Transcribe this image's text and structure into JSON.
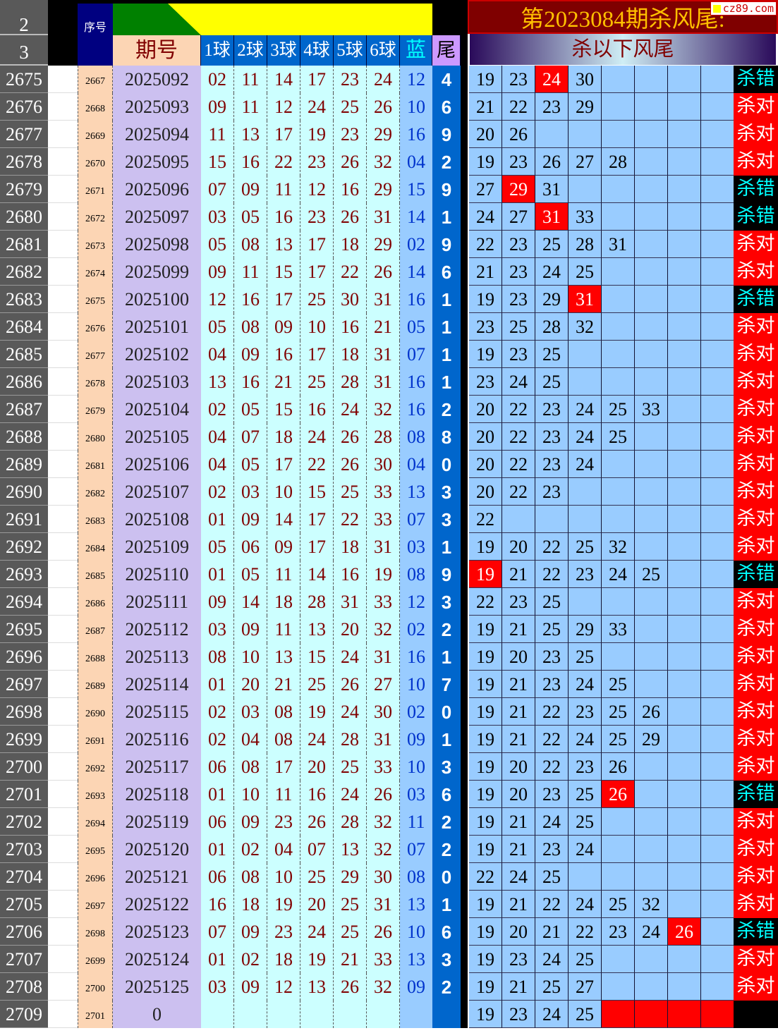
{
  "header": {
    "row_numbers": [
      "2",
      "3"
    ],
    "seq_label": "序号",
    "period_label": "期号",
    "ball_labels": [
      "1球",
      "2球",
      "3球",
      "4球",
      "5球",
      "6球"
    ],
    "blue_label": "蓝",
    "tail_label": "尾",
    "title": "第2023084期杀风尾:",
    "subtitle": "杀以下风尾",
    "watermark": "cz89.com"
  },
  "colors": {
    "hit": "#ff0000",
    "correct_bg": "#ff0000",
    "wrong_bg": "#000000",
    "wrong_text": "#00ffff",
    "tail_bg": "#0066cc"
  },
  "rows": [
    {
      "n": "2675",
      "seq": "2667",
      "period": "2025092",
      "balls": [
        "02",
        "11",
        "14",
        "17",
        "23",
        "24"
      ],
      "blue": "12",
      "tail": "4",
      "kill": [
        "19",
        "23",
        "24",
        "30"
      ],
      "hit": [
        2
      ],
      "result": "杀错"
    },
    {
      "n": "2676",
      "seq": "2668",
      "period": "2025093",
      "balls": [
        "09",
        "11",
        "12",
        "24",
        "25",
        "26"
      ],
      "blue": "10",
      "tail": "6",
      "kill": [
        "21",
        "22",
        "23",
        "29"
      ],
      "hit": [],
      "result": "杀对"
    },
    {
      "n": "2677",
      "seq": "2669",
      "period": "2025094",
      "balls": [
        "11",
        "13",
        "17",
        "19",
        "23",
        "29"
      ],
      "blue": "16",
      "tail": "9",
      "kill": [
        "20",
        "26"
      ],
      "hit": [],
      "result": "杀对"
    },
    {
      "n": "2678",
      "seq": "2670",
      "period": "2025095",
      "balls": [
        "15",
        "16",
        "22",
        "23",
        "26",
        "32"
      ],
      "blue": "04",
      "tail": "2",
      "kill": [
        "19",
        "23",
        "26",
        "27",
        "28"
      ],
      "hit": [],
      "result": "杀对"
    },
    {
      "n": "2679",
      "seq": "2671",
      "period": "2025096",
      "balls": [
        "07",
        "09",
        "11",
        "12",
        "16",
        "29"
      ],
      "blue": "15",
      "tail": "9",
      "kill": [
        "27",
        "29",
        "31"
      ],
      "hit": [
        1
      ],
      "result": "杀错"
    },
    {
      "n": "2680",
      "seq": "2672",
      "period": "2025097",
      "balls": [
        "03",
        "05",
        "16",
        "23",
        "26",
        "31"
      ],
      "blue": "14",
      "tail": "1",
      "kill": [
        "24",
        "27",
        "31",
        "33"
      ],
      "hit": [
        2
      ],
      "result": "杀错"
    },
    {
      "n": "2681",
      "seq": "2673",
      "period": "2025098",
      "balls": [
        "05",
        "08",
        "13",
        "17",
        "18",
        "29"
      ],
      "blue": "02",
      "tail": "9",
      "kill": [
        "22",
        "23",
        "25",
        "28",
        "31"
      ],
      "hit": [],
      "result": "杀对"
    },
    {
      "n": "2682",
      "seq": "2674",
      "period": "2025099",
      "balls": [
        "09",
        "11",
        "15",
        "17",
        "22",
        "26"
      ],
      "blue": "14",
      "tail": "6",
      "kill": [
        "21",
        "23",
        "24",
        "25"
      ],
      "hit": [],
      "result": "杀对"
    },
    {
      "n": "2683",
      "seq": "2675",
      "period": "2025100",
      "balls": [
        "12",
        "16",
        "17",
        "25",
        "30",
        "31"
      ],
      "blue": "16",
      "tail": "1",
      "kill": [
        "19",
        "23",
        "29",
        "31"
      ],
      "hit": [
        3
      ],
      "result": "杀错"
    },
    {
      "n": "2684",
      "seq": "2676",
      "period": "2025101",
      "balls": [
        "05",
        "08",
        "09",
        "10",
        "16",
        "21"
      ],
      "blue": "05",
      "tail": "1",
      "kill": [
        "23",
        "25",
        "28",
        "32"
      ],
      "hit": [],
      "result": "杀对"
    },
    {
      "n": "2685",
      "seq": "2677",
      "period": "2025102",
      "balls": [
        "04",
        "09",
        "16",
        "17",
        "18",
        "31"
      ],
      "blue": "07",
      "tail": "1",
      "kill": [
        "19",
        "23",
        "25"
      ],
      "hit": [],
      "result": "杀对"
    },
    {
      "n": "2686",
      "seq": "2678",
      "period": "2025103",
      "balls": [
        "13",
        "16",
        "21",
        "25",
        "28",
        "31"
      ],
      "blue": "16",
      "tail": "1",
      "kill": [
        "23",
        "24",
        "25"
      ],
      "hit": [],
      "result": "杀对"
    },
    {
      "n": "2687",
      "seq": "2679",
      "period": "2025104",
      "balls": [
        "02",
        "05",
        "15",
        "16",
        "24",
        "32"
      ],
      "blue": "16",
      "tail": "2",
      "kill": [
        "20",
        "22",
        "23",
        "24",
        "25",
        "33"
      ],
      "hit": [],
      "result": "杀对"
    },
    {
      "n": "2688",
      "seq": "2680",
      "period": "2025105",
      "balls": [
        "04",
        "07",
        "18",
        "24",
        "26",
        "28"
      ],
      "blue": "08",
      "tail": "8",
      "kill": [
        "20",
        "22",
        "23",
        "24",
        "25"
      ],
      "hit": [],
      "result": "杀对"
    },
    {
      "n": "2689",
      "seq": "2681",
      "period": "2025106",
      "balls": [
        "04",
        "05",
        "17",
        "22",
        "26",
        "30"
      ],
      "blue": "04",
      "tail": "0",
      "kill": [
        "20",
        "22",
        "23",
        "24"
      ],
      "hit": [],
      "result": "杀对"
    },
    {
      "n": "2690",
      "seq": "2682",
      "period": "2025107",
      "balls": [
        "02",
        "03",
        "10",
        "15",
        "25",
        "33"
      ],
      "blue": "13",
      "tail": "3",
      "kill": [
        "20",
        "22",
        "23"
      ],
      "hit": [],
      "result": "杀对"
    },
    {
      "n": "2691",
      "seq": "2683",
      "period": "2025108",
      "balls": [
        "01",
        "09",
        "14",
        "17",
        "22",
        "33"
      ],
      "blue": "07",
      "tail": "3",
      "kill": [
        "22"
      ],
      "hit": [],
      "result": "杀对"
    },
    {
      "n": "2692",
      "seq": "2684",
      "period": "2025109",
      "balls": [
        "05",
        "06",
        "09",
        "17",
        "18",
        "31"
      ],
      "blue": "03",
      "tail": "1",
      "kill": [
        "19",
        "20",
        "22",
        "25",
        "32"
      ],
      "hit": [],
      "result": "杀对"
    },
    {
      "n": "2693",
      "seq": "2685",
      "period": "2025110",
      "balls": [
        "01",
        "05",
        "11",
        "14",
        "16",
        "19"
      ],
      "blue": "08",
      "tail": "9",
      "kill": [
        "19",
        "21",
        "22",
        "23",
        "24",
        "25"
      ],
      "hit": [
        0
      ],
      "result": "杀错"
    },
    {
      "n": "2694",
      "seq": "2686",
      "period": "2025111",
      "balls": [
        "09",
        "14",
        "18",
        "28",
        "31",
        "33"
      ],
      "blue": "12",
      "tail": "3",
      "kill": [
        "22",
        "23",
        "25"
      ],
      "hit": [],
      "result": "杀对"
    },
    {
      "n": "2695",
      "seq": "2687",
      "period": "2025112",
      "balls": [
        "03",
        "09",
        "11",
        "13",
        "20",
        "32"
      ],
      "blue": "02",
      "tail": "2",
      "kill": [
        "19",
        "21",
        "25",
        "29",
        "33"
      ],
      "hit": [],
      "result": "杀对"
    },
    {
      "n": "2696",
      "seq": "2688",
      "period": "2025113",
      "balls": [
        "08",
        "10",
        "13",
        "15",
        "24",
        "31"
      ],
      "blue": "16",
      "tail": "1",
      "kill": [
        "19",
        "20",
        "23",
        "25"
      ],
      "hit": [],
      "result": "杀对"
    },
    {
      "n": "2697",
      "seq": "2689",
      "period": "2025114",
      "balls": [
        "01",
        "20",
        "21",
        "25",
        "26",
        "27"
      ],
      "blue": "10",
      "tail": "7",
      "kill": [
        "19",
        "21",
        "23",
        "24",
        "25"
      ],
      "hit": [],
      "result": "杀对"
    },
    {
      "n": "2698",
      "seq": "2690",
      "period": "2025115",
      "balls": [
        "02",
        "03",
        "08",
        "19",
        "24",
        "30"
      ],
      "blue": "02",
      "tail": "0",
      "kill": [
        "19",
        "21",
        "22",
        "23",
        "25",
        "26"
      ],
      "hit": [],
      "result": "杀对"
    },
    {
      "n": "2699",
      "seq": "2691",
      "period": "2025116",
      "balls": [
        "02",
        "04",
        "08",
        "24",
        "28",
        "31"
      ],
      "blue": "09",
      "tail": "1",
      "kill": [
        "19",
        "21",
        "22",
        "24",
        "25",
        "29"
      ],
      "hit": [],
      "result": "杀对"
    },
    {
      "n": "2700",
      "seq": "2692",
      "period": "2025117",
      "balls": [
        "06",
        "08",
        "17",
        "20",
        "25",
        "33"
      ],
      "blue": "10",
      "tail": "3",
      "kill": [
        "19",
        "20",
        "22",
        "23",
        "26"
      ],
      "hit": [],
      "result": "杀对"
    },
    {
      "n": "2701",
      "seq": "2693",
      "period": "2025118",
      "balls": [
        "01",
        "10",
        "11",
        "16",
        "24",
        "26"
      ],
      "blue": "03",
      "tail": "6",
      "kill": [
        "19",
        "20",
        "23",
        "25",
        "26"
      ],
      "hit": [
        4
      ],
      "result": "杀错"
    },
    {
      "n": "2702",
      "seq": "2694",
      "period": "2025119",
      "balls": [
        "06",
        "09",
        "23",
        "26",
        "28",
        "32"
      ],
      "blue": "11",
      "tail": "2",
      "kill": [
        "19",
        "21",
        "24",
        "25"
      ],
      "hit": [],
      "result": "杀对"
    },
    {
      "n": "2703",
      "seq": "2695",
      "period": "2025120",
      "balls": [
        "01",
        "02",
        "04",
        "07",
        "13",
        "32"
      ],
      "blue": "07",
      "tail": "2",
      "kill": [
        "19",
        "21",
        "23",
        "24"
      ],
      "hit": [],
      "result": "杀对"
    },
    {
      "n": "2704",
      "seq": "2696",
      "period": "2025121",
      "balls": [
        "06",
        "08",
        "10",
        "25",
        "29",
        "30"
      ],
      "blue": "08",
      "tail": "0",
      "kill": [
        "22",
        "24",
        "25"
      ],
      "hit": [],
      "result": "杀对"
    },
    {
      "n": "2705",
      "seq": "2697",
      "period": "2025122",
      "balls": [
        "16",
        "18",
        "19",
        "20",
        "25",
        "31"
      ],
      "blue": "13",
      "tail": "1",
      "kill": [
        "19",
        "21",
        "22",
        "24",
        "25",
        "32"
      ],
      "hit": [],
      "result": "杀对"
    },
    {
      "n": "2706",
      "seq": "2698",
      "period": "2025123",
      "balls": [
        "07",
        "09",
        "23",
        "24",
        "25",
        "26"
      ],
      "blue": "10",
      "tail": "6",
      "kill": [
        "19",
        "20",
        "21",
        "22",
        "23",
        "24",
        "26"
      ],
      "hit": [
        6
      ],
      "result": "杀错"
    },
    {
      "n": "2707",
      "seq": "2699",
      "period": "2025124",
      "balls": [
        "01",
        "02",
        "18",
        "19",
        "21",
        "33"
      ],
      "blue": "13",
      "tail": "3",
      "kill": [
        "19",
        "23",
        "24",
        "25"
      ],
      "hit": [],
      "result": "杀对"
    },
    {
      "n": "2708",
      "seq": "2700",
      "period": "2025125",
      "balls": [
        "03",
        "09",
        "12",
        "13",
        "26",
        "32"
      ],
      "blue": "09",
      "tail": "2",
      "kill": [
        "19",
        "21",
        "25",
        "27"
      ],
      "hit": [],
      "result": "杀对"
    },
    {
      "n": "2709",
      "seq": "2701",
      "period": "0",
      "balls": [
        "",
        "",
        "",
        "",
        "",
        ""
      ],
      "blue": "",
      "tail": "",
      "kill": [
        "19",
        "23",
        "24",
        "25"
      ],
      "hit": [],
      "pending": true,
      "result": ""
    }
  ]
}
